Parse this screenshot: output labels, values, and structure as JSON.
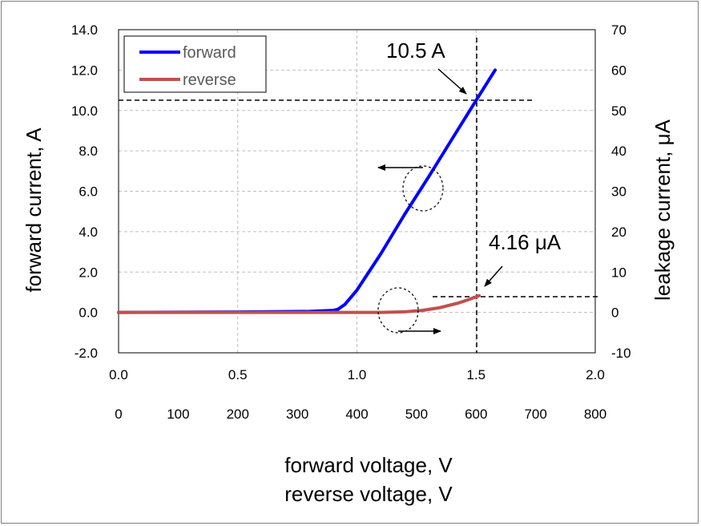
{
  "chart_data": {
    "type": "line",
    "x_primary": {
      "label": "forward voltage, V",
      "range": [
        0.0,
        2.0
      ],
      "ticks": [
        "0.0",
        "0.5",
        "1.0",
        "1.5",
        "2.0"
      ]
    },
    "x_secondary": {
      "label": "reverse voltage, V",
      "range": [
        0,
        800
      ],
      "ticks": [
        "0",
        "100",
        "200",
        "300",
        "400",
        "500",
        "600",
        "700",
        "800"
      ]
    },
    "y_left": {
      "label": "forward current, A",
      "range": [
        -2.0,
        14.0
      ],
      "ticks": [
        "-2.0",
        "0.0",
        "2.0",
        "4.0",
        "6.0",
        "8.0",
        "10.0",
        "12.0",
        "14.0"
      ]
    },
    "y_right": {
      "label": "leakage current, μA",
      "range": [
        -10,
        70
      ],
      "ticks": [
        "-10",
        "0",
        "10",
        "20",
        "30",
        "40",
        "50",
        "60",
        "70"
      ]
    },
    "grid": true,
    "legend_position": "top-left",
    "series": [
      {
        "name": "forward",
        "color": "#0000ff",
        "axis": "left",
        "x": [
          0.0,
          0.5,
          0.8,
          0.9,
          0.92,
          0.95,
          1.0,
          1.1,
          1.2,
          1.3,
          1.4,
          1.5,
          1.58
        ],
        "y": [
          0.0,
          0.02,
          0.05,
          0.1,
          0.15,
          0.4,
          1.1,
          2.9,
          4.85,
          6.7,
          8.6,
          10.5,
          12.0
        ]
      },
      {
        "name": "reverse",
        "color": "#c0504d",
        "axis": "right",
        "x": [
          0,
          200,
          400,
          440,
          480,
          510,
          540,
          570,
          590,
          605
        ],
        "y": [
          0.0,
          0.0,
          0.0,
          0.0,
          0.15,
          0.5,
          1.2,
          2.3,
          3.3,
          4.16
        ]
      }
    ],
    "annotations": [
      {
        "text": "10.5 A"
      },
      {
        "text": "4.16 μA"
      }
    ]
  }
}
